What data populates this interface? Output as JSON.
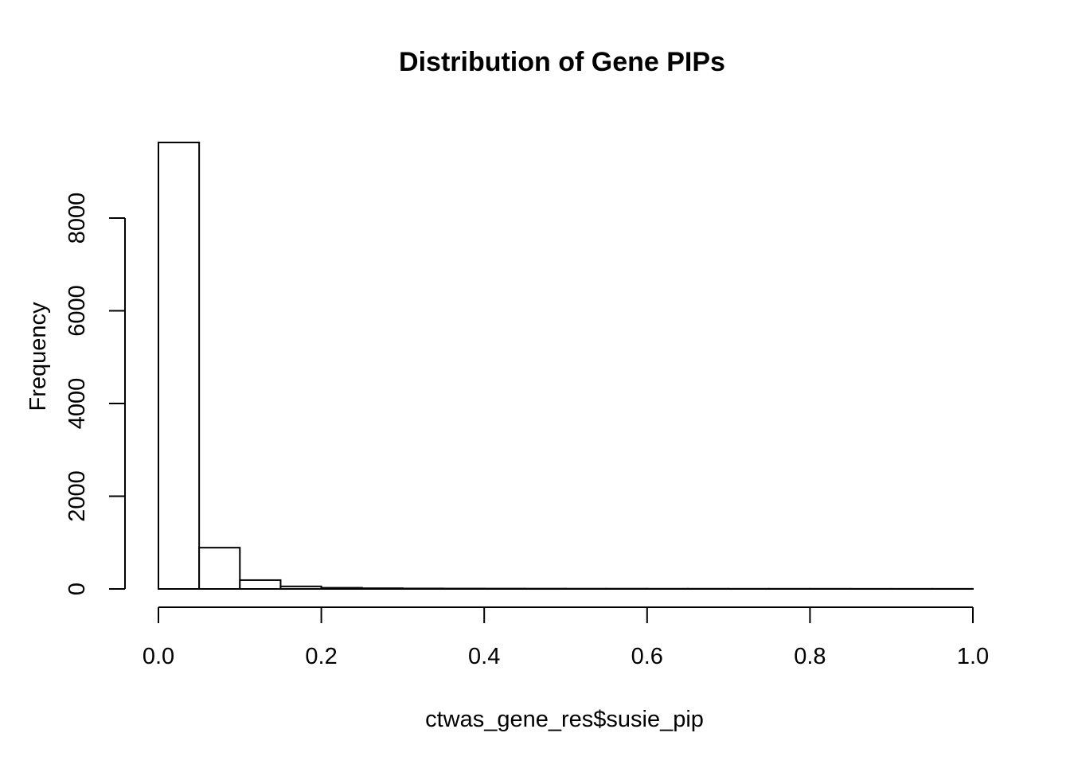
{
  "chart_data": {
    "type": "bar",
    "subtype": "histogram",
    "title": "Distribution of Gene PIPs",
    "xlabel": "ctwas_gene_res$susie_pip",
    "ylabel": "Frequency",
    "bin_edges": [
      0.0,
      0.05,
      0.1,
      0.15,
      0.2,
      0.25,
      0.3,
      0.35,
      0.4,
      0.45,
      0.5,
      0.55,
      0.6,
      0.65,
      0.7,
      0.75,
      0.8,
      0.85,
      0.9,
      0.95,
      1.0
    ],
    "counts": [
      9630,
      890,
      190,
      55,
      25,
      15,
      10,
      8,
      7,
      6,
      5,
      5,
      4,
      4,
      3,
      3,
      3,
      2,
      2,
      2
    ],
    "xlim": [
      0.0,
      1.0
    ],
    "ylim": [
      0,
      8000
    ],
    "x_ticks": [
      0.0,
      0.2,
      0.4,
      0.6,
      0.8,
      1.0
    ],
    "x_tick_labels": [
      "0.0",
      "0.2",
      "0.4",
      "0.6",
      "0.8",
      "1.0"
    ],
    "y_ticks": [
      0,
      2000,
      4000,
      6000,
      8000
    ],
    "y_tick_labels": [
      "0",
      "2000",
      "4000",
      "6000",
      "8000"
    ],
    "grid": false,
    "legend": null,
    "colors": {
      "background": "#ffffff",
      "bar_fill": "#ffffff",
      "bar_stroke": "#000000",
      "axis": "#000000",
      "text": "#000000"
    }
  }
}
